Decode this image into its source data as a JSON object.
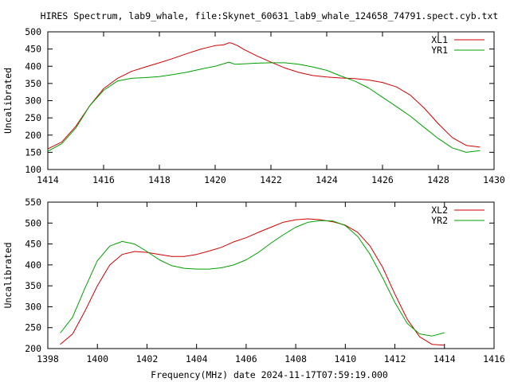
{
  "title": "HIRES Spectrum, lab9_whale, file:Skynet_60631_lab9_whale_124658_74791.spect.cyb.txt",
  "xlabel": "Frequency(MHz) date 2024-11-17T07:59:19.000",
  "colors": {
    "red": "#d00000",
    "green": "#00a000",
    "axis": "#000000"
  },
  "chart_data": [
    {
      "type": "line",
      "ylabel": "Uncalibrated",
      "xlim": [
        1414,
        1430
      ],
      "ylim": [
        100,
        500
      ],
      "xticks": [
        1414,
        1416,
        1418,
        1420,
        1422,
        1424,
        1426,
        1428,
        1430
      ],
      "yticks": [
        100,
        150,
        200,
        250,
        300,
        350,
        400,
        450,
        500
      ],
      "legend_position": "top-right",
      "series": [
        {
          "name": "XL1",
          "color": "#d00000",
          "x": [
            1414.0,
            1414.5,
            1415.0,
            1415.5,
            1416.0,
            1416.5,
            1417.0,
            1417.5,
            1418.0,
            1418.5,
            1419.0,
            1419.5,
            1420.0,
            1420.3,
            1420.5,
            1420.6,
            1420.8,
            1421.0,
            1421.5,
            1422.0,
            1422.5,
            1423.0,
            1423.5,
            1424.0,
            1424.5,
            1425.0,
            1425.5,
            1426.0,
            1426.5,
            1427.0,
            1427.5,
            1428.0,
            1428.5,
            1429.0,
            1429.5
          ],
          "values": [
            160,
            180,
            225,
            285,
            335,
            365,
            385,
            398,
            410,
            423,
            437,
            450,
            460,
            462,
            468,
            467,
            460,
            450,
            430,
            412,
            395,
            382,
            373,
            369,
            366,
            364,
            360,
            353,
            340,
            316,
            278,
            233,
            193,
            170,
            165
          ]
        },
        {
          "name": "YR1",
          "color": "#00a000",
          "x": [
            1414.0,
            1414.5,
            1415.0,
            1415.5,
            1416.0,
            1416.5,
            1417.0,
            1417.5,
            1418.0,
            1418.5,
            1419.0,
            1419.5,
            1420.0,
            1420.2,
            1420.5,
            1420.7,
            1421.0,
            1421.5,
            1422.0,
            1422.5,
            1423.0,
            1423.5,
            1424.0,
            1424.5,
            1425.0,
            1425.5,
            1426.0,
            1426.5,
            1427.0,
            1427.5,
            1428.0,
            1428.5,
            1429.0,
            1429.5
          ],
          "values": [
            153,
            175,
            220,
            285,
            330,
            357,
            365,
            367,
            370,
            376,
            383,
            392,
            400,
            405,
            412,
            406,
            407,
            409,
            410,
            410,
            406,
            398,
            388,
            372,
            357,
            337,
            310,
            283,
            255,
            222,
            190,
            163,
            150,
            155
          ]
        }
      ]
    },
    {
      "type": "line",
      "ylabel": "Uncalibrated",
      "xlim": [
        1398,
        1416
      ],
      "ylim": [
        200,
        550
      ],
      "xticks": [
        1398,
        1400,
        1402,
        1404,
        1406,
        1408,
        1410,
        1412,
        1414,
        1416
      ],
      "yticks": [
        200,
        250,
        300,
        350,
        400,
        450,
        500,
        550
      ],
      "legend_position": "top-right",
      "series": [
        {
          "name": "XL2",
          "color": "#d00000",
          "x": [
            1398.5,
            1399.0,
            1399.5,
            1400.0,
            1400.5,
            1401.0,
            1401.5,
            1402.0,
            1402.5,
            1403.0,
            1403.5,
            1404.0,
            1404.5,
            1405.0,
            1405.5,
            1406.0,
            1406.5,
            1407.0,
            1407.5,
            1408.0,
            1408.5,
            1409.0,
            1409.5,
            1410.0,
            1410.5,
            1411.0,
            1411.5,
            1412.0,
            1412.5,
            1413.0,
            1413.5,
            1414.0
          ],
          "values": [
            210,
            235,
            290,
            350,
            400,
            425,
            432,
            430,
            425,
            420,
            420,
            425,
            433,
            442,
            455,
            465,
            478,
            490,
            502,
            508,
            510,
            508,
            503,
            495,
            478,
            445,
            395,
            330,
            270,
            228,
            210,
            208
          ]
        },
        {
          "name": "YR2",
          "color": "#00a000",
          "x": [
            1398.5,
            1399.0,
            1399.5,
            1400.0,
            1400.5,
            1401.0,
            1401.5,
            1402.0,
            1402.5,
            1403.0,
            1403.5,
            1404.0,
            1404.5,
            1405.0,
            1405.5,
            1406.0,
            1406.5,
            1407.0,
            1407.5,
            1408.0,
            1408.5,
            1409.0,
            1409.5,
            1410.0,
            1410.5,
            1411.0,
            1411.5,
            1412.0,
            1412.5,
            1413.0,
            1413.5,
            1414.0
          ],
          "values": [
            237,
            275,
            345,
            410,
            445,
            456,
            450,
            432,
            412,
            398,
            392,
            390,
            390,
            393,
            400,
            412,
            430,
            452,
            472,
            490,
            502,
            506,
            505,
            494,
            468,
            425,
            370,
            310,
            260,
            235,
            230,
            238
          ]
        }
      ]
    }
  ]
}
